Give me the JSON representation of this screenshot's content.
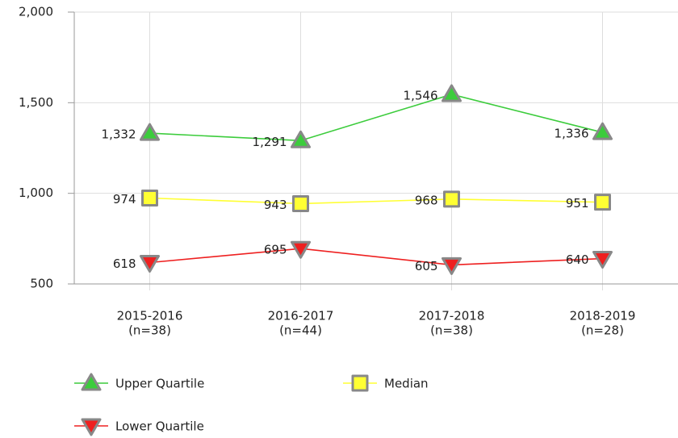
{
  "chart_data": {
    "type": "line",
    "categories": [
      [
        "2015-2016",
        "(n=38)"
      ],
      [
        "2016-2017",
        "(n=44)"
      ],
      [
        "2017-2018",
        "(n=38)"
      ],
      [
        "2018-2019",
        "(n=28)"
      ]
    ],
    "series": [
      {
        "name": "Upper Quartile",
        "color": "#3ccc3c",
        "marker": "triangle-up",
        "values": [
          1332,
          1291,
          1546,
          1336
        ],
        "value_labels": [
          "1,332",
          "1,291",
          "1,546",
          "1,336"
        ]
      },
      {
        "name": "Median",
        "color": "#ffff33",
        "marker": "square",
        "values": [
          974,
          943,
          968,
          951
        ],
        "value_labels": [
          "974",
          "943",
          "968",
          "951"
        ]
      },
      {
        "name": "Lower Quartile",
        "color": "#ee2020",
        "marker": "triangle-down",
        "values": [
          618,
          695,
          605,
          640
        ],
        "value_labels": [
          "618",
          "695",
          "605",
          "640"
        ]
      }
    ],
    "ylim": [
      500,
      2000
    ],
    "yticks": [
      500,
      {
        "value": 1000,
        "label": "1,000"
      },
      {
        "value": 1500,
        "label": "1,500"
      },
      {
        "value": 2000,
        "label": "2,000"
      }
    ],
    "grid": true
  }
}
